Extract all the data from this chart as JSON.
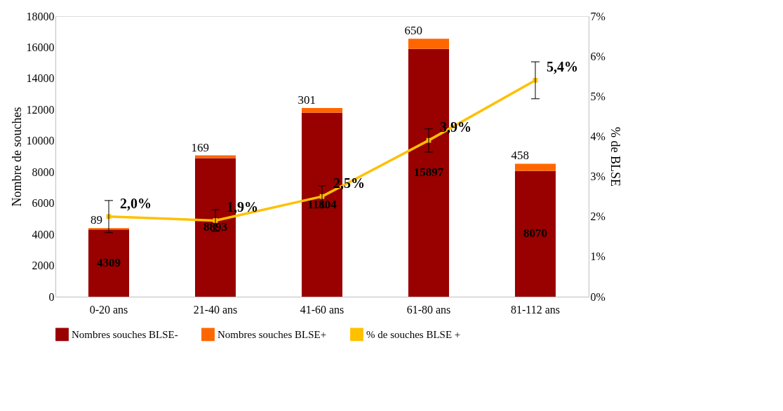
{
  "chart_data": {
    "type": "bar",
    "stacked": true,
    "ylabel": "Nombre de souches",
    "y2label": "% de BLSE",
    "categories": [
      "0-20 ans",
      "21-40 ans",
      "41-60 ans",
      "61-80 ans",
      "81-112 ans"
    ],
    "series": [
      {
        "name": "Nombres souches BLSE-",
        "color": "#990000",
        "values": [
          4309,
          8893,
          11804,
          15897,
          8070
        ],
        "value_labels": [
          "4309",
          "8893",
          "11804",
          "15897",
          "8070"
        ]
      },
      {
        "name": "Nombres souches BLSE+",
        "color": "#ff6600",
        "values": [
          89,
          169,
          301,
          650,
          458
        ],
        "value_labels": [
          "89",
          "169",
          "301",
          "650",
          "458"
        ]
      },
      {
        "name": "% de souches BLSE +",
        "type": "line",
        "axis": "y2",
        "color": "#ffc000",
        "marker": "square",
        "values": [
          2.0,
          1.9,
          2.5,
          3.9,
          5.4
        ],
        "errors": [
          0.4,
          0.27,
          0.27,
          0.29,
          0.46
        ],
        "value_labels": [
          "2,0%",
          "1,9%",
          "2,5%",
          "3,9%",
          "5,4%"
        ]
      }
    ],
    "ylim": [
      0,
      18000
    ],
    "yticks": [
      0,
      2000,
      4000,
      6000,
      8000,
      10000,
      12000,
      14000,
      16000,
      18000
    ],
    "y2lim": [
      0,
      7
    ],
    "y2ticks": [
      {
        "value": 0,
        "label": "0%"
      },
      {
        "value": 1,
        "label": "1%"
      },
      {
        "value": 2,
        "label": "2%"
      },
      {
        "value": 3,
        "label": "3%"
      },
      {
        "value": 4,
        "label": "4%"
      },
      {
        "value": 5,
        "label": "5%"
      },
      {
        "value": 6,
        "label": "6%"
      },
      {
        "value": 7,
        "label": "7%"
      }
    ],
    "grid": false,
    "legend": "bottom"
  }
}
